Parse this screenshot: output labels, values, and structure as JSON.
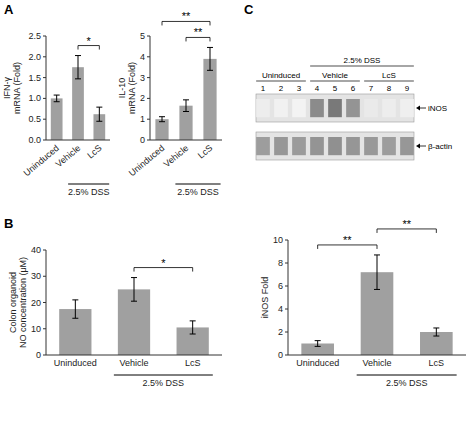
{
  "chart_data": [
    {
      "type": "bar",
      "panel": "A",
      "ylabel": "IFN-γ\nmRNA (Fold)",
      "categories": [
        "Uninduced",
        "Vehicle",
        "LcS"
      ],
      "values": [
        1.0,
        1.75,
        0.62
      ],
      "errors": [
        0.08,
        0.28,
        0.17
      ],
      "color": "#a0a0a0",
      "ylim": [
        0,
        2.5
      ],
      "yticks": [
        {
          "value": 0.0,
          "label": "0.0"
        },
        0.5,
        {
          "value": 1.0,
          "label": "1.0"
        },
        1.5,
        {
          "value": 2.0,
          "label": "2.0"
        },
        2.5
      ],
      "group_labels": [
        {
          "text": "2.5% DSS",
          "categories": [
            "Vehicle",
            "LcS"
          ]
        }
      ],
      "annotations": [
        {
          "text": "*",
          "categories": [
            "Vehicle",
            "LcS"
          ]
        }
      ]
    },
    {
      "type": "bar",
      "ylabel": "IL-10\nmRNA (Fold)",
      "categories": [
        "Uninduced",
        "Vehicle",
        "LcS"
      ],
      "values": [
        1.0,
        1.65,
        3.9
      ],
      "errors": [
        0.12,
        0.28,
        0.55
      ],
      "color": "#a0a0a0",
      "ylim": [
        0,
        5
      ],
      "yticks": [
        0,
        1,
        2,
        3,
        4,
        5
      ],
      "group_labels": [
        {
          "text": "2.5% DSS",
          "categories": [
            "Vehicle",
            "LcS"
          ]
        }
      ],
      "annotations": [
        {
          "text": "**",
          "categories": [
            "Vehicle",
            "LcS"
          ]
        },
        {
          "text": "**",
          "categories": [
            "Uninduced",
            "LcS"
          ]
        }
      ]
    },
    {
      "type": "bar",
      "panel": "B",
      "ylabel": "Colon organoid\nNO concentration (μM)",
      "categories": [
        "Uninduced",
        "Vehicle",
        "LcS"
      ],
      "values": [
        17.5,
        25.0,
        10.5
      ],
      "errors": [
        3.5,
        4.5,
        2.5
      ],
      "color": "#a0a0a0",
      "ylim": [
        0,
        40
      ],
      "yticks": [
        0,
        10,
        20,
        30,
        40
      ],
      "group_labels": [
        {
          "text": "2.5% DSS",
          "categories": [
            "Vehicle",
            "LcS"
          ]
        }
      ],
      "annotations": [
        {
          "text": "*",
          "categories": [
            "Vehicle",
            "LcS"
          ]
        }
      ]
    },
    {
      "type": "blot",
      "panel": "C",
      "categories": [
        "1",
        "2",
        "3",
        "4",
        "5",
        "6",
        "7",
        "8",
        "9"
      ],
      "series": [
        {
          "name": "iNOS",
          "values": [
            0.1,
            0.08,
            0.07,
            0.65,
            0.75,
            0.6,
            0.12,
            0.1,
            0.09
          ]
        },
        {
          "name": "β-actin",
          "values": [
            0.55,
            0.58,
            0.56,
            0.6,
            0.62,
            0.59,
            0.57,
            0.55,
            0.58
          ]
        }
      ],
      "group_labels": [
        {
          "text": "Uninduced",
          "categories": [
            "1",
            "2",
            "3"
          ]
        },
        {
          "text": "Vehicle",
          "categories": [
            "4",
            "5",
            "6"
          ]
        },
        {
          "text": "LcS",
          "categories": [
            "7",
            "8",
            "9"
          ]
        },
        {
          "text": "2.5% DSS",
          "categories": [
            "4",
            "5",
            "6",
            "7",
            "8",
            "9"
          ]
        }
      ]
    },
    {
      "type": "bar",
      "ylabel": "iNOS Fold",
      "categories": [
        "Uninduced",
        "Vehicle",
        "LcS"
      ],
      "values": [
        1.0,
        7.2,
        2.0
      ],
      "errors": [
        0.25,
        1.5,
        0.35
      ],
      "color": "#a0a0a0",
      "ylim": [
        0,
        10
      ],
      "yticks": [
        0,
        2,
        4,
        6,
        8,
        10
      ],
      "group_labels": [
        {
          "text": "2.5% DSS",
          "categories": [
            "Vehicle",
            "LcS"
          ]
        }
      ],
      "annotations": [
        {
          "text": "**",
          "categories": [
            "Uninduced",
            "Vehicle"
          ]
        },
        {
          "text": "**",
          "categories": [
            "Vehicle",
            "LcS"
          ]
        }
      ]
    }
  ]
}
